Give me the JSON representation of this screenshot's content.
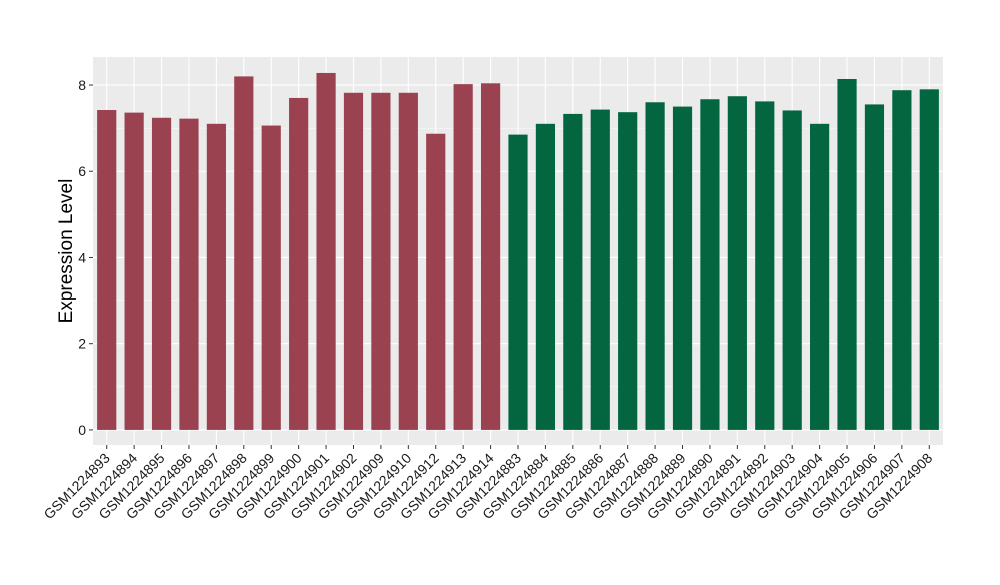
{
  "chart_data": {
    "type": "bar",
    "title": "",
    "xlabel": "",
    "ylabel": "Expression Level",
    "ylim": [
      -0.35,
      8.65
    ],
    "yticks": [
      0,
      2,
      4,
      6,
      8
    ],
    "grid": true,
    "legend": "none",
    "colors": {
      "group1": "#9a4250",
      "group2": "#036640",
      "panel": "#ebebeb",
      "gridline": "#ffffff"
    },
    "categories": [
      "GSM1224893",
      "GSM1224894",
      "GSM1224895",
      "GSM1224896",
      "GSM1224897",
      "GSM1224898",
      "GSM1224899",
      "GSM1224900",
      "GSM1224901",
      "GSM1224902",
      "GSM1224909",
      "GSM1224910",
      "GSM1224912",
      "GSM1224913",
      "GSM1224914",
      "GSM1224883",
      "GSM1224884",
      "GSM1224885",
      "GSM1224886",
      "GSM1224887",
      "GSM1224888",
      "GSM1224889",
      "GSM1224890",
      "GSM1224891",
      "GSM1224892",
      "GSM1224903",
      "GSM1224904",
      "GSM1224905",
      "GSM1224906",
      "GSM1224907",
      "GSM1224908"
    ],
    "values": [
      7.42,
      7.36,
      7.24,
      7.22,
      7.1,
      8.2,
      7.06,
      7.7,
      8.28,
      7.82,
      7.82,
      7.82,
      6.87,
      8.02,
      8.04,
      6.85,
      7.1,
      7.33,
      7.43,
      7.37,
      7.6,
      7.5,
      7.67,
      7.74,
      7.62,
      7.41,
      7.1,
      8.14,
      7.55,
      7.88,
      7.9
    ],
    "groups": [
      "group1",
      "group1",
      "group1",
      "group1",
      "group1",
      "group1",
      "group1",
      "group1",
      "group1",
      "group1",
      "group1",
      "group1",
      "group1",
      "group1",
      "group1",
      "group2",
      "group2",
      "group2",
      "group2",
      "group2",
      "group2",
      "group2",
      "group2",
      "group2",
      "group2",
      "group2",
      "group2",
      "group2",
      "group2",
      "group2",
      "group2"
    ]
  }
}
